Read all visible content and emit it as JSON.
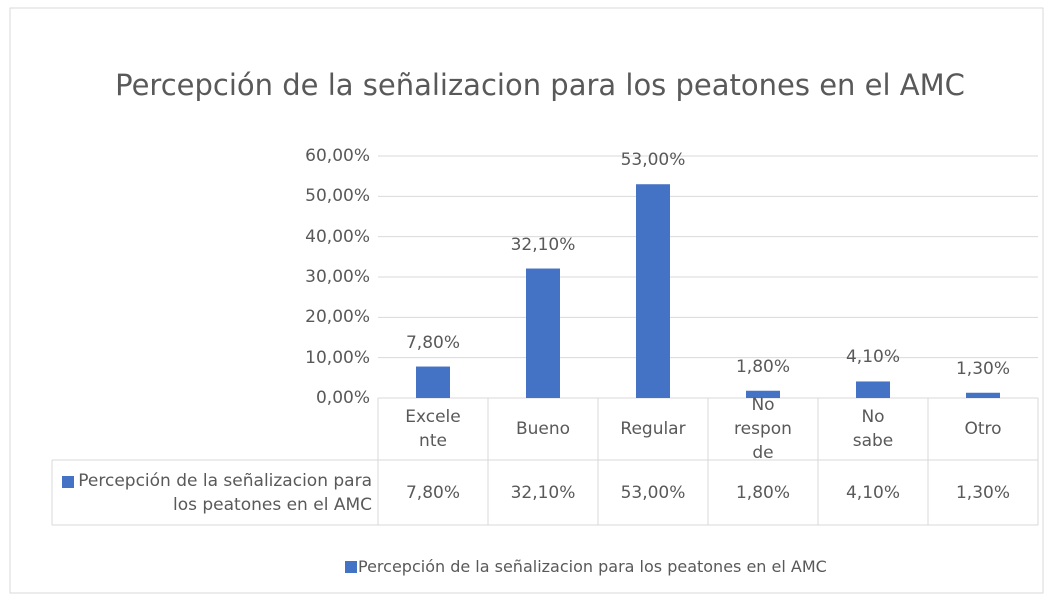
{
  "chart_data": {
    "type": "bar",
    "title": "Percepción de la señalizacion para los peatones en el AMC",
    "categories": [
      "Excelente",
      "Bueno",
      "Regular",
      "No responde",
      "No sabe",
      "Otro"
    ],
    "series": [
      {
        "name": "Percepción de la señalizacion para los peatones en el AMC",
        "color": "#4472c4",
        "values": [
          7.8,
          32.1,
          53.0,
          1.8,
          4.1,
          1.3
        ],
        "value_labels": [
          "7,80%",
          "32,10%",
          "53,00%",
          "1,80%",
          "4,10%",
          "1,30%"
        ]
      }
    ],
    "ylim": [
      0,
      60
    ],
    "yticks": [
      {
        "value": 0,
        "label": "0,00%"
      },
      {
        "value": 10,
        "label": "10,00%"
      },
      {
        "value": 20,
        "label": "20,00%"
      },
      {
        "value": 30,
        "label": "30,00%"
      },
      {
        "value": 40,
        "label": "40,00%"
      },
      {
        "value": 50,
        "label": "50,00%"
      },
      {
        "value": 60,
        "label": "60,00%"
      }
    ],
    "grid": true,
    "legend": "bottom",
    "data_table": true
  }
}
